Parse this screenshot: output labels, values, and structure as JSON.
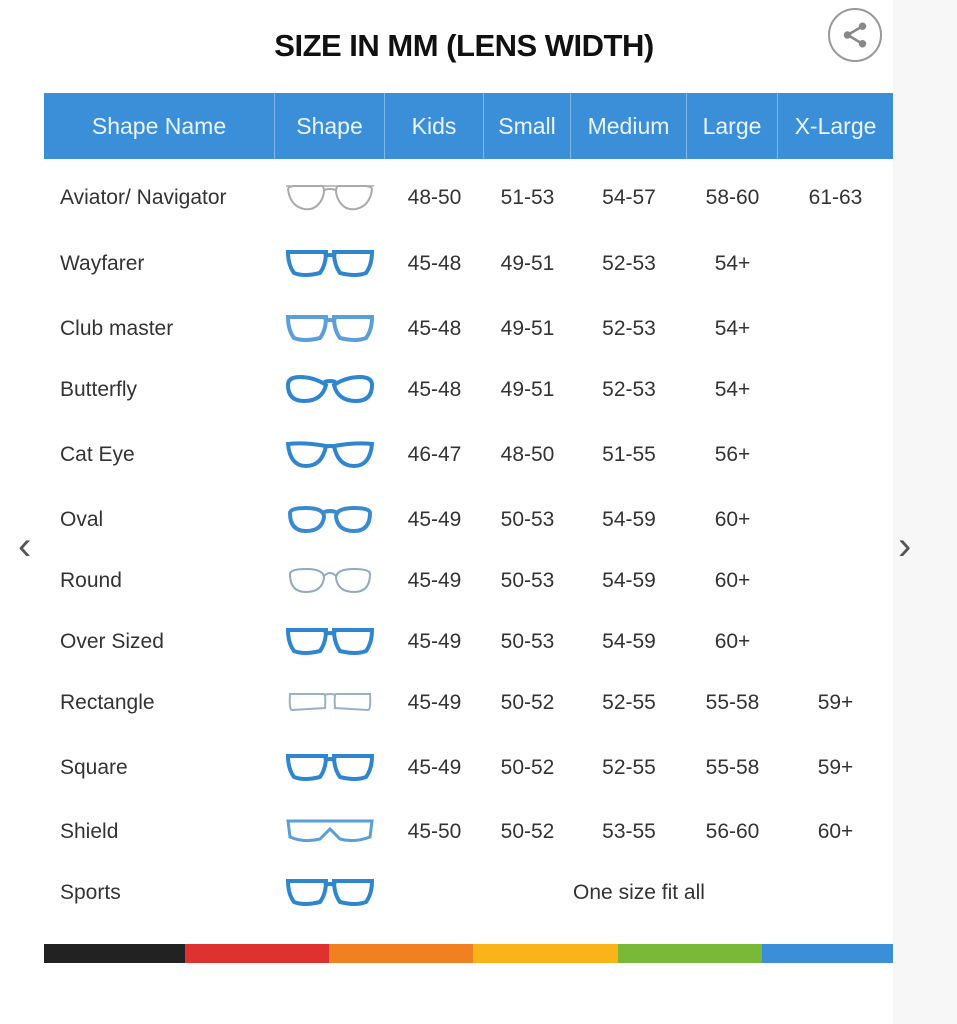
{
  "title": "SIZE IN MM (LENS WIDTH)",
  "icons": {
    "share": "share-icon",
    "prev": "chevron-left-icon",
    "next": "chevron-right-icon"
  },
  "header": [
    "Shape Name",
    "Shape",
    "Kids",
    "Small",
    "Medium",
    "Large",
    "X-Large"
  ],
  "rows": [
    {
      "name": "Aviator/ Navigator",
      "icon": "aviator",
      "color": "#aaaaaa",
      "sizes": [
        "48-50",
        "51-53",
        "54-57",
        "58-60",
        "61-63"
      ]
    },
    {
      "name": "Wayfarer",
      "icon": "wayfarer",
      "color": "#2f86cf",
      "sizes": [
        "45-48",
        "49-51",
        "52-53",
        "54+",
        ""
      ]
    },
    {
      "name": "Club master",
      "icon": "clubmaster",
      "color": "#5a9fd8",
      "sizes": [
        "45-48",
        "49-51",
        "52-53",
        "54+",
        ""
      ]
    },
    {
      "name": "Butterfly",
      "icon": "butterfly",
      "color": "#2f86cf",
      "sizes": [
        "45-48",
        "49-51",
        "52-53",
        "54+",
        ""
      ]
    },
    {
      "name": "Cat Eye",
      "icon": "cateye",
      "color": "#2f86cf",
      "sizes": [
        "46-47",
        "48-50",
        "51-55",
        "56+",
        ""
      ]
    },
    {
      "name": "Oval",
      "icon": "oval",
      "color": "#3a8ad0",
      "sizes": [
        "45-49",
        "50-53",
        "54-59",
        "60+",
        ""
      ]
    },
    {
      "name": "Round",
      "icon": "round",
      "color": "#8fa9c0",
      "sizes": [
        "45-49",
        "50-53",
        "54-59",
        "60+",
        ""
      ]
    },
    {
      "name": "Over Sized",
      "icon": "oversized",
      "color": "#2f86cf",
      "sizes": [
        "45-49",
        "50-53",
        "54-59",
        "60+",
        ""
      ]
    },
    {
      "name": "Rectangle",
      "icon": "rectangle",
      "color": "#9ab0c4",
      "sizes": [
        "45-49",
        "50-52",
        "52-55",
        "55-58",
        "59+"
      ]
    },
    {
      "name": "Square",
      "icon": "square",
      "color": "#2f86cf",
      "sizes": [
        "45-49",
        "50-52",
        "52-55",
        "55-58",
        "59+"
      ]
    },
    {
      "name": "Shield",
      "icon": "shield",
      "color": "#5a9fd8",
      "sizes": [
        "45-50",
        "50-52",
        "53-55",
        "56-60",
        "60+"
      ]
    },
    {
      "name": "Sports",
      "icon": "sports",
      "color": "#2f86cf",
      "note": "One size fit all"
    }
  ],
  "color_bar": [
    "#222222",
    "#e03131",
    "#f08020",
    "#fbb417",
    "#7ab838",
    "#3a8fd8"
  ]
}
